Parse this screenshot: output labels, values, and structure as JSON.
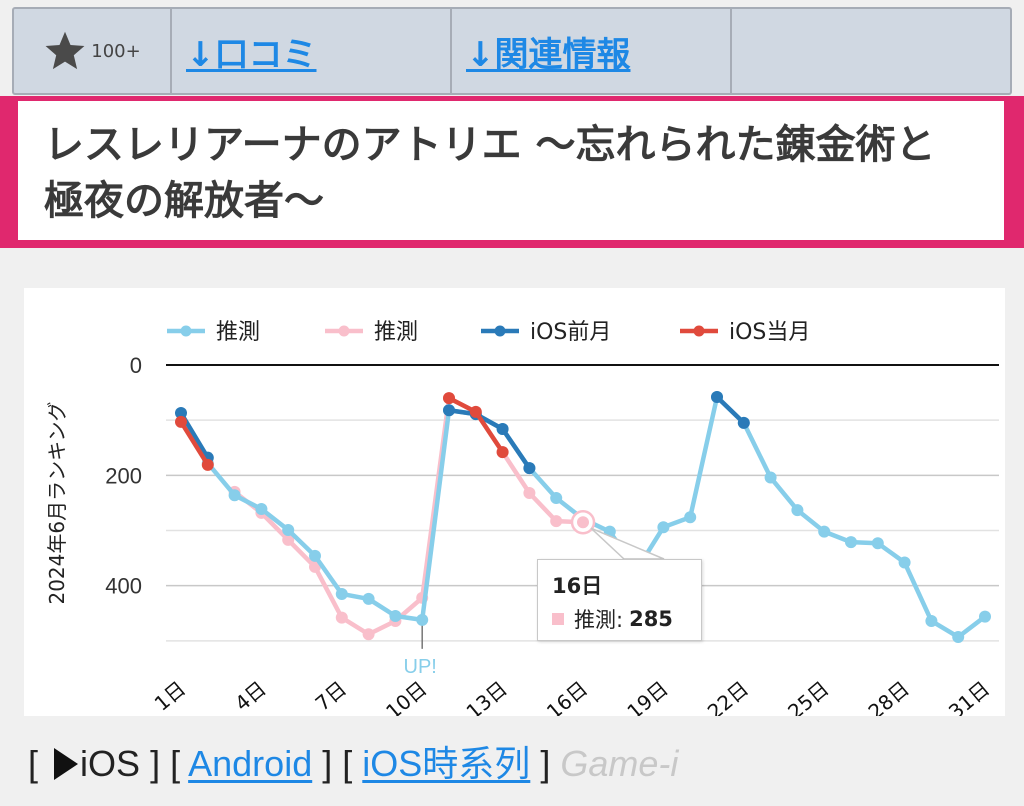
{
  "topnav": {
    "star_count": "100+",
    "reviews_link": "↓口コミ",
    "related_link": "↓関連情報"
  },
  "title": {
    "line1": "レスレリアーナのアトリエ ～忘れられた錬金術と",
    "line2": "極夜の解放者～"
  },
  "colors": {
    "accent_pink": "#e0286e",
    "est_blue": "#87ceea",
    "est_pink": "#f9bfcb",
    "ios_prev": "#2a7ab8",
    "ios_curr": "#e04a3c",
    "link": "#1e88e5"
  },
  "chart_data": {
    "type": "line",
    "title": "",
    "xlabel": "",
    "ylabel": "2024年6月ランキング",
    "ylim": [
      0,
      500
    ],
    "y_reversed": true,
    "y_ticks": [
      "0",
      "200",
      "400"
    ],
    "grid": true,
    "legend_position": "top",
    "x_tick_labels": [
      "1日",
      "4日",
      "7日",
      "10日",
      "13日",
      "16日",
      "19日",
      "22日",
      "25日",
      "28日",
      "31日"
    ],
    "x": [
      1,
      2,
      3,
      4,
      5,
      6,
      7,
      8,
      9,
      10,
      11,
      12,
      13,
      14,
      15,
      16,
      17,
      18,
      19,
      20,
      21,
      22,
      23,
      24,
      25,
      26,
      27,
      28,
      29,
      30,
      31
    ],
    "series": [
      {
        "name": "推測",
        "color": "#87ceea",
        "values": [
          null,
          178,
          236,
          261,
          299,
          346,
          415,
          424,
          455,
          462,
          82,
          89,
          116,
          187,
          241,
          279,
          302,
          372,
          294,
          276,
          58,
          105,
          204,
          263,
          302,
          321,
          323,
          358,
          464,
          493,
          456
        ]
      },
      {
        "name": "推測",
        "color": "#f9bfcb",
        "values": [
          null,
          null,
          230,
          268,
          317,
          366,
          458,
          488,
          464,
          422,
          60,
          85,
          158,
          232,
          283,
          285,
          null,
          null,
          null,
          null,
          null,
          null,
          null,
          null,
          null,
          null,
          null,
          null,
          null,
          null,
          null
        ]
      },
      {
        "name": "iOS前月",
        "color": "#2a7ab8",
        "values": [
          87,
          168,
          null,
          null,
          null,
          null,
          null,
          null,
          null,
          null,
          82,
          89,
          116,
          187,
          null,
          null,
          null,
          null,
          null,
          null,
          58,
          105,
          null,
          null,
          null,
          null,
          null,
          null,
          null,
          null,
          null
        ]
      },
      {
        "name": "iOS当月",
        "color": "#e04a3c",
        "values": [
          103,
          181,
          null,
          null,
          null,
          null,
          null,
          null,
          null,
          null,
          60,
          85,
          158,
          null,
          null,
          null,
          null,
          null,
          null,
          null,
          null,
          null,
          null,
          null,
          null,
          null,
          null,
          null,
          null,
          null,
          null
        ]
      }
    ],
    "annotations": [
      {
        "x": 10,
        "text": "UP!"
      }
    ],
    "tooltip": {
      "day": "16日",
      "series": "推測",
      "label": "推測:",
      "value": "285"
    }
  },
  "footer": {
    "open_bracket1": "[",
    "ios_label": "iOS",
    "close_bracket1": "]",
    "open_bracket2": "[",
    "android_link": "Android",
    "close_bracket2": "]",
    "open_bracket3": "[",
    "ios_timeline_link": "iOS時系列",
    "close_bracket3": "]",
    "brand": "Game-i"
  }
}
